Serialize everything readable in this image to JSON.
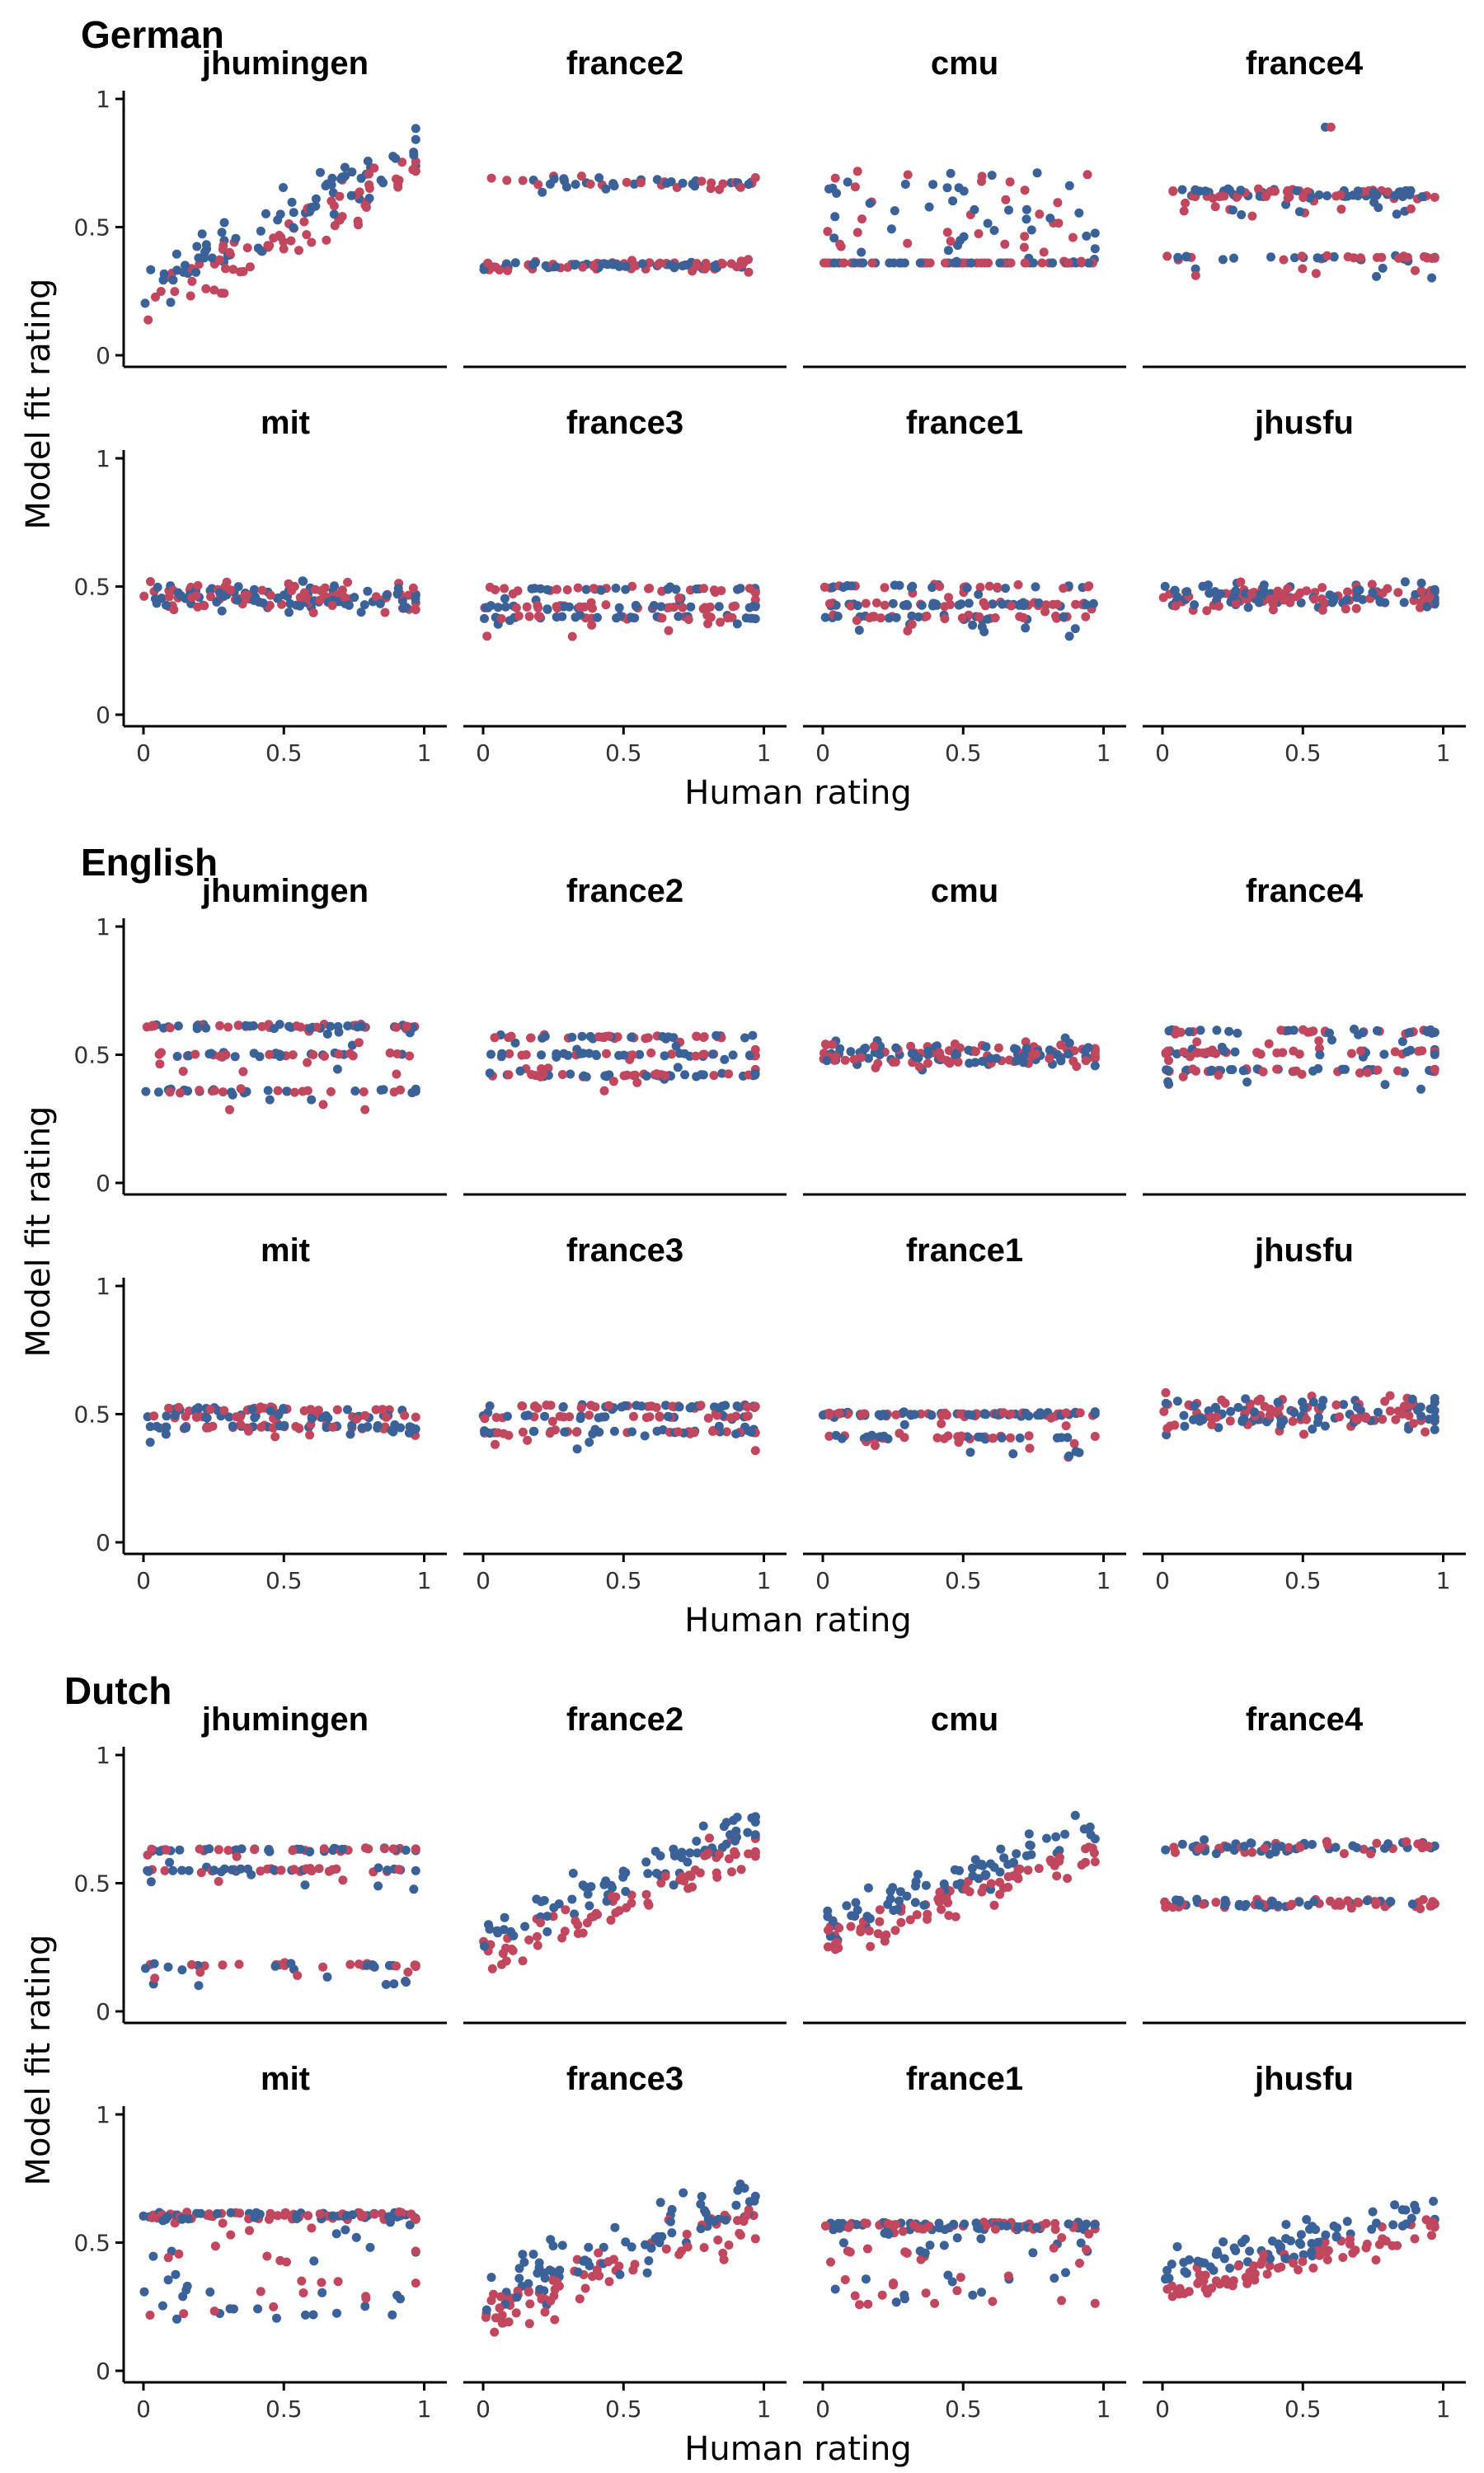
{
  "chart_data": {
    "type": "scatter",
    "xlabel": "Human rating",
    "ylabel": "Model fit rating",
    "xlim": [
      0,
      1
    ],
    "ylim": [
      0,
      1
    ],
    "x_ticks": [
      "0",
      "0.5",
      "1"
    ],
    "y_ticks": [
      "0",
      "0.5",
      "1"
    ],
    "grid": false,
    "legend": "none",
    "series_colors": [
      "#3a6198",
      "#c0475e"
    ],
    "languages": [
      {
        "name": "German",
        "panels": [
          {
            "title": "jhumingen",
            "pattern": "linear",
            "lo": 0.22,
            "hi": 0.78,
            "spread": 0.12
          },
          {
            "title": "france2",
            "pattern": "twoband",
            "bands": [
              0.35,
              0.67
            ],
            "hi": 0.4
          },
          {
            "title": "cmu",
            "pattern": "floor",
            "floor": 0.36,
            "hi": 0.73
          },
          {
            "title": "france4",
            "pattern": "bands",
            "bands": [
              0.38,
              0.62,
              0.64
            ],
            "outlier": 0.89
          },
          {
            "title": "mit",
            "pattern": "flat",
            "center": 0.46,
            "spread": 0.07
          },
          {
            "title": "france3",
            "pattern": "bands",
            "bands": [
              0.49,
              0.42,
              0.38
            ]
          },
          {
            "title": "france1",
            "pattern": "bands",
            "bands": [
              0.5,
              0.43,
              0.38
            ]
          },
          {
            "title": "jhusfu",
            "pattern": "flat",
            "center": 0.46,
            "spread": 0.06
          }
        ]
      },
      {
        "name": "English",
        "panels": [
          {
            "title": "jhumingen",
            "pattern": "bands",
            "bands": [
              0.61,
              0.5,
              0.36
            ]
          },
          {
            "title": "france2",
            "pattern": "bands",
            "bands": [
              0.57,
              0.5,
              0.42
            ]
          },
          {
            "title": "cmu",
            "pattern": "flat",
            "center": 0.5,
            "spread": 0.06
          },
          {
            "title": "france4",
            "pattern": "bands",
            "bands": [
              0.59,
              0.51,
              0.44
            ]
          },
          {
            "title": "mit",
            "pattern": "bands",
            "bands": [
              0.52,
              0.49,
              0.45
            ]
          },
          {
            "title": "france3",
            "pattern": "bands",
            "bands": [
              0.53,
              0.49,
              0.43
            ]
          },
          {
            "title": "france1",
            "pattern": "bands",
            "bands": [
              0.5,
              0.5,
              0.41
            ]
          },
          {
            "title": "jhusfu",
            "pattern": "flat",
            "center": 0.5,
            "spread": 0.08
          }
        ]
      },
      {
        "name": "Dutch",
        "panels": [
          {
            "title": "jhumingen",
            "pattern": "bands",
            "bands": [
              0.63,
              0.55,
              0.18
            ]
          },
          {
            "title": "france2",
            "pattern": "linear",
            "lo": 0.25,
            "hi": 0.7,
            "spread": 0.1
          },
          {
            "title": "cmu",
            "pattern": "linear",
            "lo": 0.3,
            "hi": 0.68,
            "spread": 0.09
          },
          {
            "title": "france4",
            "pattern": "twoband",
            "bands": [
              0.42,
              0.64
            ],
            "hi": 0.5
          },
          {
            "title": "mit",
            "pattern": "ceiling",
            "ceil": 0.62,
            "lo": 0.2
          },
          {
            "title": "france3",
            "pattern": "linear",
            "lo": 0.25,
            "hi": 0.65,
            "spread": 0.14
          },
          {
            "title": "france1",
            "pattern": "ceiling",
            "ceil": 0.58,
            "lo": 0.25
          },
          {
            "title": "jhusfu",
            "pattern": "linear",
            "lo": 0.35,
            "hi": 0.6,
            "spread": 0.08
          }
        ]
      }
    ]
  }
}
